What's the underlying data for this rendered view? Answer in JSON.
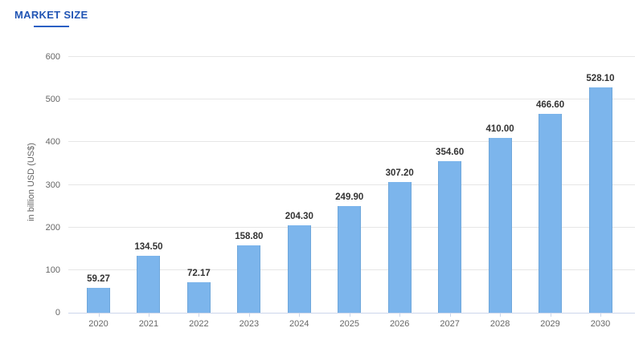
{
  "tab": {
    "label": "MARKET SIZE"
  },
  "colors": {
    "bar_fill": "#7cb5ec",
    "bar_edge": "#6fa8de",
    "tab_text": "#2155b4",
    "tab_underline": "#2a5fc4",
    "grid_line": "#e6e6e6",
    "axis_line": "#ccd6eb",
    "tick_label": "#666666",
    "value_label": "#333333",
    "background": "#ffffff"
  },
  "chart_data": {
    "type": "bar",
    "title": "MARKET SIZE",
    "categories": [
      "2020",
      "2021",
      "2022",
      "2023",
      "2024",
      "2025",
      "2026",
      "2027",
      "2028",
      "2029",
      "2030"
    ],
    "values": [
      59.27,
      134.5,
      72.17,
      158.8,
      204.3,
      249.9,
      307.2,
      354.6,
      410.0,
      466.6,
      528.1
    ],
    "value_labels": [
      "59.27",
      "134.50",
      "72.17",
      "158.80",
      "204.30",
      "249.90",
      "307.20",
      "354.60",
      "410.00",
      "466.60",
      "528.10"
    ],
    "xlabel": "",
    "ylabel": "in billion USD (US$)",
    "ylim": [
      0,
      600
    ],
    "yticks": [
      0,
      100,
      200,
      300,
      400,
      500,
      600
    ],
    "grid": true,
    "legend_position": "none"
  }
}
